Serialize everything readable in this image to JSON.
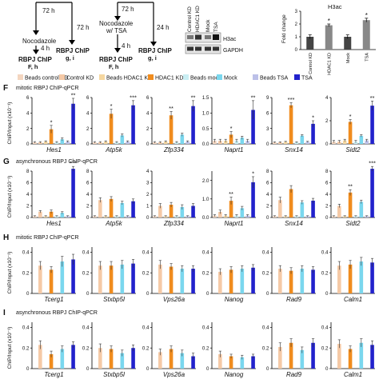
{
  "schema": {
    "col1": {
      "t1": "72 h",
      "t2": "Nocodazole",
      "t3": "4 h",
      "t4": "72 h",
      "chip1": "RBPJ ChIP",
      "sub1": "F, h",
      "chip2": "RBPJ ChIP",
      "sub2": "g, i"
    },
    "col2": {
      "t1": "72 h",
      "t2": "Nocodazole",
      "t3": "w/ TSA",
      "t4": "24 h",
      "t5": "4 h",
      "chip1": "RBPJ ChIP",
      "sub1": "F, h",
      "chip2": "RBPJ ChIP",
      "sub2": "g, i"
    }
  },
  "blot": {
    "lanes": [
      "Control KD",
      "HDAC1 KD",
      "Mock",
      "TSA"
    ],
    "rows": [
      "H3ac",
      "GAPDH"
    ]
  },
  "h3ac_chart": {
    "title": "H3ac",
    "ylabel": "Fold change",
    "ylim": [
      0,
      3
    ],
    "yticks": [
      "0",
      "1",
      "2",
      "3"
    ],
    "categories": [
      "Control KD",
      "HDAC1 KD",
      "Mock",
      "TSA"
    ],
    "values": [
      1.0,
      1.9,
      1.0,
      2.3
    ],
    "errors": [
      0.15,
      0.1,
      0.15,
      0.15
    ],
    "stars": [
      "",
      "*",
      "",
      "*"
    ],
    "colors": [
      "#444444",
      "#888888",
      "#444444",
      "#888888"
    ]
  },
  "legend": [
    {
      "label": "Beads control KD",
      "color": "#f4d6c0"
    },
    {
      "label": "Control KD",
      "color": "#f5c9a6"
    },
    {
      "label": "Beads HDAC1 KD",
      "color": "#f5d7a0"
    },
    {
      "label": "HDAC1 KD",
      "color": "#f08c1e"
    },
    {
      "label": "Beads mock",
      "color": "#c9eef3"
    },
    {
      "label": "Mock",
      "color": "#7ad7ee"
    },
    {
      "label": "Beads TSA",
      "color": "#bcc0e8"
    },
    {
      "label": "TSA",
      "color": "#2222cc"
    }
  ],
  "ylabel_main": "ChIP/Input (x10⁻¹)",
  "panels": [
    {
      "letter": "F",
      "title": "mitotic RBPJ ChIP-qPCR",
      "showLegend": true
    },
    {
      "letter": "G",
      "title": "asynchronous RBPJ ChIP-qPCR"
    },
    {
      "letter": "H",
      "title": "mitotic RBPJ ChIP-qPCR"
    },
    {
      "letter": "I",
      "title": "asynchronous RBPJ ChIP-qPCR"
    }
  ],
  "chart_data": [
    {
      "type": "bar",
      "panel": "F",
      "gene": "Hes1",
      "yticks": [
        "0",
        "2",
        "4",
        "6"
      ],
      "ylim": [
        0,
        6
      ],
      "series": [
        {
          "values": [
            0.2,
            0.2,
            0.3,
            1.9,
            0.2,
            0.6,
            0.3,
            5.2
          ],
          "errors": [
            0.1,
            0.1,
            0.1,
            0.5,
            0.1,
            0.2,
            0.1,
            0.7
          ]
        }
      ],
      "stars": [
        "",
        "",
        "",
        "*",
        "",
        "",
        "",
        "**"
      ]
    },
    {
      "type": "bar",
      "panel": "F",
      "gene": "Atp5k",
      "yticks": [
        "0",
        "2",
        "4",
        "6"
      ],
      "ylim": [
        0,
        6
      ],
      "series": [
        {
          "values": [
            0.2,
            0.2,
            0.3,
            3.9,
            0.2,
            1.1,
            0.3,
            5.0
          ],
          "errors": [
            0.1,
            0.1,
            0.1,
            0.6,
            0.1,
            0.2,
            0.1,
            0.6
          ]
        }
      ],
      "stars": [
        "",
        "",
        "",
        "*",
        "",
        "",
        "",
        "***"
      ]
    },
    {
      "type": "bar",
      "panel": "F",
      "gene": "Zfp334",
      "yticks": [
        "0",
        "2",
        "4",
        "6"
      ],
      "ylim": [
        0,
        6
      ],
      "series": [
        {
          "values": [
            0.2,
            0.2,
            0.3,
            3.7,
            0.2,
            1.2,
            0.3,
            4.9
          ],
          "errors": [
            0.1,
            0.1,
            0.1,
            0.5,
            0.1,
            0.2,
            0.1,
            0.7
          ]
        }
      ],
      "stars": [
        "",
        "",
        "",
        "**",
        "",
        "",
        "",
        "**"
      ]
    },
    {
      "type": "bar",
      "panel": "F",
      "gene": "Naprt1",
      "yticks": [
        "0.0",
        "0.5",
        "1.0",
        "1.5"
      ],
      "ylim": [
        0,
        1.5
      ],
      "series": [
        {
          "values": [
            0.1,
            0.1,
            0.1,
            0.3,
            0.1,
            0.2,
            0.1,
            1.1
          ],
          "errors": [
            0.05,
            0.05,
            0.05,
            0.1,
            0.05,
            0.05,
            0.05,
            0.3
          ]
        }
      ],
      "stars": [
        "",
        "",
        "",
        "*",
        "",
        "",
        "",
        "**"
      ]
    },
    {
      "type": "bar",
      "panel": "F",
      "gene": "Snx14",
      "yticks": [
        "0",
        "3",
        "6",
        "9"
      ],
      "ylim": [
        0,
        9
      ],
      "series": [
        {
          "values": [
            0.3,
            0.3,
            0.4,
            7.5,
            0.3,
            1.6,
            0.4,
            3.9
          ],
          "errors": [
            0.1,
            0.1,
            0.1,
            0.5,
            0.1,
            0.2,
            0.1,
            0.6
          ]
        }
      ],
      "stars": [
        "",
        "",
        "",
        "***",
        "",
        "",
        "",
        "*"
      ]
    },
    {
      "type": "bar",
      "panel": "F",
      "gene": "Sidt2",
      "yticks": [
        "0",
        "2",
        "4"
      ],
      "ylim": [
        0,
        4
      ],
      "series": [
        {
          "values": [
            0.2,
            0.2,
            0.3,
            1.9,
            0.2,
            0.7,
            0.3,
            3.3
          ],
          "errors": [
            0.1,
            0.1,
            0.1,
            0.2,
            0.1,
            0.1,
            0.1,
            0.4
          ]
        }
      ],
      "stars": [
        "",
        "",
        "",
        "*",
        "",
        "",
        "",
        "**"
      ]
    },
    {
      "type": "bar",
      "panel": "G",
      "gene": "Hes1",
      "yticks": [
        "0",
        "2",
        "4",
        "6",
        "8"
      ],
      "ylim": [
        0,
        8
      ],
      "series": [
        {
          "values": [
            0.2,
            1.0,
            0.2,
            1.0,
            0.2,
            0.8,
            0.2,
            8.4
          ],
          "errors": [
            0.1,
            0.2,
            0.1,
            0.3,
            0.1,
            0.2,
            0.1,
            0.4
          ]
        }
      ],
      "stars": [
        "",
        "",
        "",
        "",
        "",
        "",
        "",
        "***"
      ]
    },
    {
      "type": "bar",
      "panel": "G",
      "gene": "Atp5k",
      "yticks": [
        "0",
        "2",
        "4",
        "6",
        "8"
      ],
      "ylim": [
        0,
        8
      ],
      "series": [
        {
          "values": [
            0.2,
            3.0,
            0.2,
            3.2,
            0.2,
            2.5,
            0.2,
            2.8
          ],
          "errors": [
            0.1,
            0.4,
            0.1,
            0.4,
            0.1,
            0.3,
            0.1,
            0.4
          ]
        }
      ],
      "stars": [
        "",
        "",
        "",
        "",
        "",
        "",
        "",
        ""
      ]
    },
    {
      "type": "bar",
      "panel": "G",
      "gene": "Zfp334",
      "yticks": [
        "0",
        "1",
        "2",
        "3",
        "4"
      ],
      "ylim": [
        0,
        4
      ],
      "series": [
        {
          "values": [
            0.1,
            1.0,
            0.1,
            1.1,
            0.1,
            0.9,
            0.1,
            1.0
          ],
          "errors": [
            0.05,
            0.2,
            0.05,
            0.2,
            0.05,
            0.2,
            0.05,
            0.2
          ]
        }
      ],
      "stars": [
        "",
        "",
        "",
        "",
        "",
        "",
        "",
        ""
      ]
    },
    {
      "type": "bar",
      "panel": "G",
      "gene": "Naprt1",
      "yticks": [
        "0.0",
        "1.0",
        "2.0"
      ],
      "ylim": [
        0,
        2.5
      ],
      "series": [
        {
          "values": [
            0.1,
            0.3,
            0.1,
            0.9,
            0.1,
            0.5,
            0.1,
            1.9
          ],
          "errors": [
            0.05,
            0.1,
            0.05,
            0.2,
            0.05,
            0.1,
            0.05,
            0.3
          ]
        }
      ],
      "stars": [
        "",
        "",
        "",
        "**",
        "",
        "",
        "",
        "*"
      ]
    },
    {
      "type": "bar",
      "panel": "G",
      "gene": "Snx14",
      "yticks": [
        "0",
        "2",
        "4",
        "6",
        "8"
      ],
      "ylim": [
        0,
        8
      ],
      "series": [
        {
          "values": [
            0.2,
            3.0,
            0.2,
            4.9,
            0.2,
            2.6,
            0.2,
            2.9
          ],
          "errors": [
            0.1,
            0.5,
            0.1,
            0.6,
            0.1,
            0.3,
            0.1,
            0.4
          ]
        }
      ],
      "stars": [
        "",
        "",
        "",
        "",
        "",
        "",
        "",
        ""
      ]
    },
    {
      "type": "bar",
      "panel": "G",
      "gene": "Sidt2",
      "yticks": [
        "0",
        "2",
        "4",
        "6",
        "8"
      ],
      "ylim": [
        0,
        8
      ],
      "series": [
        {
          "values": [
            0.2,
            2.0,
            0.2,
            4.3,
            0.2,
            2.7,
            0.2,
            8.4
          ],
          "errors": [
            0.1,
            0.3,
            0.1,
            0.5,
            0.1,
            0.3,
            0.1,
            0.4
          ]
        }
      ],
      "stars": [
        "",
        "",
        "",
        "**",
        "",
        "",
        "",
        "***"
      ]
    },
    {
      "type": "bar",
      "panel": "H",
      "gene": "Tcerg1",
      "yticks": [
        "0",
        "0.2",
        "0.4"
      ],
      "ylim": [
        0,
        0.45
      ],
      "series": [
        {
          "values": [
            0.0,
            0.27,
            0.0,
            0.23,
            0.0,
            0.31,
            0.0,
            0.33
          ],
          "errors": [
            0,
            0.04,
            0,
            0.03,
            0,
            0.05,
            0,
            0.05
          ]
        }
      ],
      "stars": [
        "",
        "",
        "",
        "",
        "",
        "",
        "",
        ""
      ]
    },
    {
      "type": "bar",
      "panel": "H",
      "gene": "Stxbp5l",
      "yticks": [
        "0",
        "0.2",
        "0.4"
      ],
      "ylim": [
        0,
        0.45
      ],
      "series": [
        {
          "values": [
            0.0,
            0.27,
            0.0,
            0.27,
            0.0,
            0.28,
            0.0,
            0.29
          ],
          "errors": [
            0,
            0.04,
            0,
            0.04,
            0,
            0.04,
            0,
            0.04
          ]
        }
      ],
      "stars": [
        "",
        "",
        "",
        "",
        "",
        "",
        "",
        ""
      ]
    },
    {
      "type": "bar",
      "panel": "H",
      "gene": "Vps26a",
      "yticks": [
        "0",
        "0.2",
        "0.4"
      ],
      "ylim": [
        0,
        0.45
      ],
      "series": [
        {
          "values": [
            0.0,
            0.28,
            0.0,
            0.26,
            0.0,
            0.24,
            0.0,
            0.24
          ],
          "errors": [
            0,
            0.04,
            0,
            0.03,
            0,
            0.03,
            0,
            0.03
          ]
        }
      ],
      "stars": [
        "",
        "",
        "",
        "",
        "",
        "",
        "",
        ""
      ]
    },
    {
      "type": "bar",
      "panel": "H",
      "gene": "Nanog",
      "yticks": [
        "0",
        "0.2",
        "0.4"
      ],
      "ylim": [
        0,
        0.45
      ],
      "series": [
        {
          "values": [
            0.0,
            0.21,
            0.0,
            0.23,
            0.0,
            0.24,
            0.0,
            0.25
          ],
          "errors": [
            0,
            0.03,
            0,
            0.03,
            0,
            0.03,
            0,
            0.03
          ]
        }
      ],
      "stars": [
        "",
        "",
        "",
        "",
        "",
        "",
        "",
        ""
      ]
    },
    {
      "type": "bar",
      "panel": "H",
      "gene": "Rad9",
      "yticks": [
        "0",
        "0.2",
        "0.4"
      ],
      "ylim": [
        0,
        0.45
      ],
      "series": [
        {
          "values": [
            0.0,
            0.24,
            0.0,
            0.22,
            0.0,
            0.24,
            0.0,
            0.23
          ],
          "errors": [
            0,
            0.03,
            0,
            0.03,
            0,
            0.03,
            0,
            0.03
          ]
        }
      ],
      "stars": [
        "",
        "",
        "",
        "",
        "",
        "",
        "",
        ""
      ]
    },
    {
      "type": "bar",
      "panel": "H",
      "gene": "Calm1",
      "yticks": [
        "0",
        "0.2",
        "0.4"
      ],
      "ylim": [
        0,
        0.45
      ],
      "series": [
        {
          "values": [
            0.0,
            0.27,
            0.0,
            0.28,
            0.0,
            0.31,
            0.0,
            0.3
          ],
          "errors": [
            0,
            0.04,
            0,
            0.04,
            0,
            0.04,
            0,
            0.04
          ]
        }
      ],
      "stars": [
        "",
        "",
        "",
        "",
        "",
        "",
        "",
        ""
      ]
    },
    {
      "type": "bar",
      "panel": "I",
      "gene": "Tcerg1",
      "yticks": [
        "0",
        "0.2",
        "0.4"
      ],
      "ylim": [
        0,
        0.45
      ],
      "series": [
        {
          "values": [
            0.0,
            0.23,
            0.0,
            0.14,
            0.0,
            0.19,
            0.0,
            0.23
          ],
          "errors": [
            0,
            0.04,
            0,
            0.03,
            0,
            0.03,
            0,
            0.03
          ]
        }
      ],
      "stars": [
        "",
        "",
        "",
        "",
        "",
        "",
        "",
        ""
      ]
    },
    {
      "type": "bar",
      "panel": "I",
      "gene": "Stxbp5l",
      "yticks": [
        "0",
        "0.2",
        "0.4"
      ],
      "ylim": [
        0,
        0.45
      ],
      "series": [
        {
          "values": [
            0.0,
            0.2,
            0.0,
            0.19,
            0.0,
            0.15,
            0.0,
            0.2
          ],
          "errors": [
            0,
            0.04,
            0,
            0.03,
            0,
            0.03,
            0,
            0.03
          ]
        }
      ],
      "stars": [
        "",
        "",
        "",
        "",
        "",
        "",
        "",
        ""
      ]
    },
    {
      "type": "bar",
      "panel": "I",
      "gene": "Vps26a",
      "yticks": [
        "0",
        "0.2",
        "0.4"
      ],
      "ylim": [
        0,
        0.45
      ],
      "series": [
        {
          "values": [
            0.0,
            0.16,
            0.0,
            0.19,
            0.0,
            0.15,
            0.0,
            0.12
          ],
          "errors": [
            0,
            0.03,
            0,
            0.03,
            0,
            0.03,
            0,
            0.03
          ]
        }
      ],
      "stars": [
        "",
        "",
        "",
        "",
        "",
        "",
        "",
        ""
      ]
    },
    {
      "type": "bar",
      "panel": "I",
      "gene": "Nanog",
      "yticks": [
        "0",
        "0.2",
        "0.4"
      ],
      "ylim": [
        0,
        0.45
      ],
      "series": [
        {
          "values": [
            0.0,
            0.14,
            0.0,
            0.12,
            0.0,
            0.11,
            0.0,
            0.12
          ],
          "errors": [
            0,
            0.03,
            0,
            0.02,
            0,
            0.02,
            0,
            0.02
          ]
        }
      ],
      "stars": [
        "",
        "",
        "",
        "",
        "",
        "",
        "",
        ""
      ]
    },
    {
      "type": "bar",
      "panel": "I",
      "gene": "Rad9",
      "yticks": [
        "0",
        "0.2",
        "0.4"
      ],
      "ylim": [
        0,
        0.45
      ],
      "series": [
        {
          "values": [
            0.0,
            0.21,
            0.0,
            0.25,
            0.0,
            0.18,
            0.0,
            0.25
          ],
          "errors": [
            0,
            0.04,
            0,
            0.04,
            0,
            0.03,
            0,
            0.04
          ]
        }
      ],
      "stars": [
        "",
        "",
        "",
        "",
        "",
        "",
        "",
        ""
      ]
    },
    {
      "type": "bar",
      "panel": "I",
      "gene": "Calm1",
      "yticks": [
        "0",
        "0.2",
        "0.4"
      ],
      "ylim": [
        0,
        0.45
      ],
      "series": [
        {
          "values": [
            0.0,
            0.24,
            0.0,
            0.19,
            0.0,
            0.25,
            0.0,
            0.23
          ],
          "errors": [
            0,
            0.04,
            0,
            0.03,
            0,
            0.04,
            0,
            0.04
          ]
        }
      ],
      "stars": [
        "",
        "",
        "",
        "",
        "",
        "",
        "",
        ""
      ]
    }
  ]
}
